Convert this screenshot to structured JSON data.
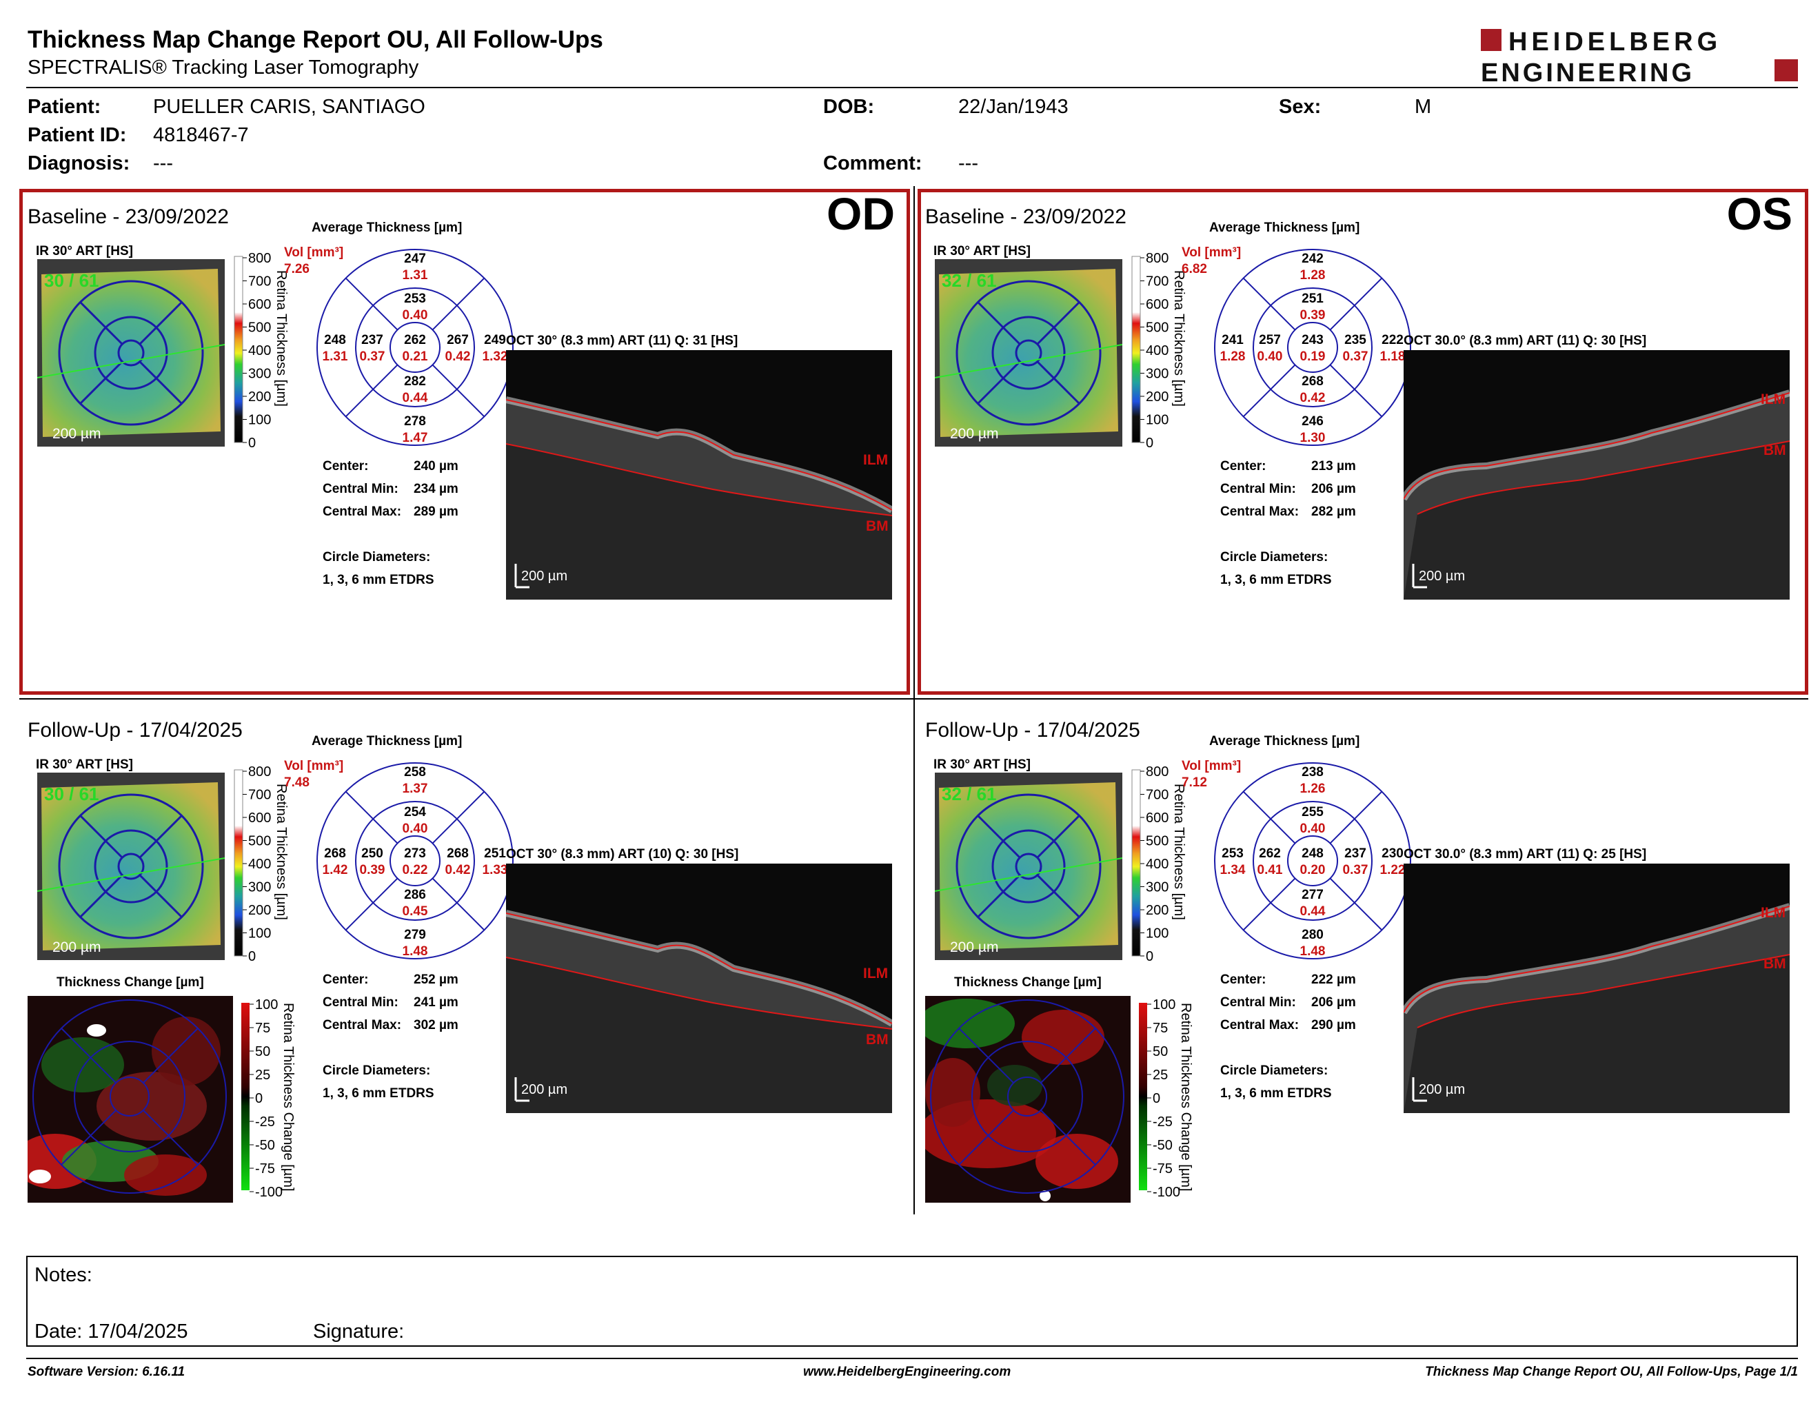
{
  "report": {
    "title": "Thickness Map Change Report OU, All Follow-Ups",
    "subtitle": "SPECTRALIS® Tracking Laser Tomography",
    "logo_line1": "HEIDELBERG",
    "logo_line2": "ENGINEERING"
  },
  "patient": {
    "patient_label": "Patient:",
    "patient_name": "PUELLER CARIS, SANTIAGO",
    "id_label": "Patient ID:",
    "id_value": "4818467-7",
    "diag_label": "Diagnosis:",
    "diag_value": "---",
    "dob_label": "DOB:",
    "dob_value": "22/Jan/1943",
    "comment_label": "Comment:",
    "comment_value": "---",
    "sex_label": "Sex:",
    "sex_value": "M"
  },
  "common": {
    "avg_thickness": "Average Thickness [µm]",
    "vol_label": "Vol [mm³]",
    "scale_200": "200 µm",
    "retina_thickness": "Retina Thickness [µm]",
    "thickness_change": "Thickness Change [µm]",
    "retina_thickness_change": "Retina Thickness Change [µm]",
    "center_label": "Center:",
    "central_min_label": "Central Min:",
    "central_max_label": "Central Max:",
    "circle_diam_label": "Circle Diameters:",
    "circle_diam_value": "1, 3, 6 mm ETDRS",
    "ilm": "ILM",
    "bm": "BM",
    "ir_label": "IR 30° ART [HS]",
    "thick_ticks": [
      "800",
      "700",
      "600",
      "500",
      "400",
      "300",
      "200",
      "100",
      "0"
    ],
    "change_ticks": [
      "100",
      "75",
      "50",
      "25",
      "0",
      "-25",
      "-50",
      "-75",
      "-100"
    ]
  },
  "panels": {
    "od_base": {
      "title": "Baseline - 23/09/2022",
      "eye": "OD",
      "ir_counter": "30 / 61",
      "vol": "7.26",
      "oct_label": "OCT 30° (8.3 mm) ART (11) Q: 31 [HS]",
      "center": "240 µm",
      "cmin": "234 µm",
      "cmax": "289 µm",
      "grid": {
        "c": [
          "262",
          "0.21"
        ],
        "in_s": [
          "253",
          "0.40"
        ],
        "in_t": [
          "237",
          "0.37"
        ],
        "in_n": [
          "267",
          "0.42"
        ],
        "in_i": [
          "282",
          "0.44"
        ],
        "out_s": [
          "247",
          "1.31"
        ],
        "out_t": [
          "248",
          "1.31"
        ],
        "out_n": [
          "249",
          "1.32"
        ],
        "out_i": [
          "278",
          "1.47"
        ]
      }
    },
    "os_base": {
      "title": "Baseline - 23/09/2022",
      "eye": "OS",
      "ir_counter": "32 / 61",
      "vol": "6.82",
      "oct_label": "OCT 30.0° (8.3 mm) ART (11) Q: 30 [HS]",
      "center": "213 µm",
      "cmin": "206 µm",
      "cmax": "282 µm",
      "grid": {
        "c": [
          "243",
          "0.19"
        ],
        "in_s": [
          "251",
          "0.39"
        ],
        "in_t": [
          "257",
          "0.40"
        ],
        "in_n": [
          "235",
          "0.37"
        ],
        "in_i": [
          "268",
          "0.42"
        ],
        "out_s": [
          "242",
          "1.28"
        ],
        "out_t": [
          "241",
          "1.28"
        ],
        "out_n": [
          "222",
          "1.18"
        ],
        "out_i": [
          "246",
          "1.30"
        ]
      }
    },
    "od_fu": {
      "title": "Follow-Up - 17/04/2025",
      "ir_counter": "30 / 61",
      "vol": "7.48",
      "oct_label": "OCT 30° (8.3 mm) ART (10) Q: 30 [HS]",
      "center": "252 µm",
      "cmin": "241 µm",
      "cmax": "302 µm",
      "grid": {
        "c": [
          "273",
          "0.22"
        ],
        "in_s": [
          "254",
          "0.40"
        ],
        "in_t": [
          "250",
          "0.39"
        ],
        "in_n": [
          "268",
          "0.42"
        ],
        "in_i": [
          "286",
          "0.45"
        ],
        "out_s": [
          "258",
          "1.37"
        ],
        "out_t": [
          "268",
          "1.42"
        ],
        "out_n": [
          "251",
          "1.33"
        ],
        "out_i": [
          "279",
          "1.48"
        ]
      }
    },
    "os_fu": {
      "title": "Follow-Up - 17/04/2025",
      "ir_counter": "32 / 61",
      "vol": "7.12",
      "oct_label": "OCT 30.0° (8.3 mm) ART (11) Q: 25 [HS]",
      "center": "222 µm",
      "cmin": "206 µm",
      "cmax": "290 µm",
      "grid": {
        "c": [
          "248",
          "0.20"
        ],
        "in_s": [
          "255",
          "0.40"
        ],
        "in_t": [
          "262",
          "0.41"
        ],
        "in_n": [
          "237",
          "0.37"
        ],
        "in_i": [
          "277",
          "0.44"
        ],
        "out_s": [
          "238",
          "1.26"
        ],
        "out_t": [
          "253",
          "1.34"
        ],
        "out_n": [
          "230",
          "1.22"
        ],
        "out_i": [
          "280",
          "1.48"
        ]
      }
    }
  },
  "notes": {
    "notes_label": "Notes:",
    "date_label": "Date: 17/04/2025",
    "signature_label": "Signature:"
  },
  "footer": {
    "software": "Software Version: 6.16.11",
    "website": "www.HeidelbergEngineering.com",
    "page": "Thickness Map Change Report OU, All Follow-Ups, Page 1/1"
  },
  "colors": {
    "frame_red": "#b01818",
    "value_red": "#c81414",
    "grid_blue": "#1a1aa8",
    "counter_green": "#28d828"
  }
}
